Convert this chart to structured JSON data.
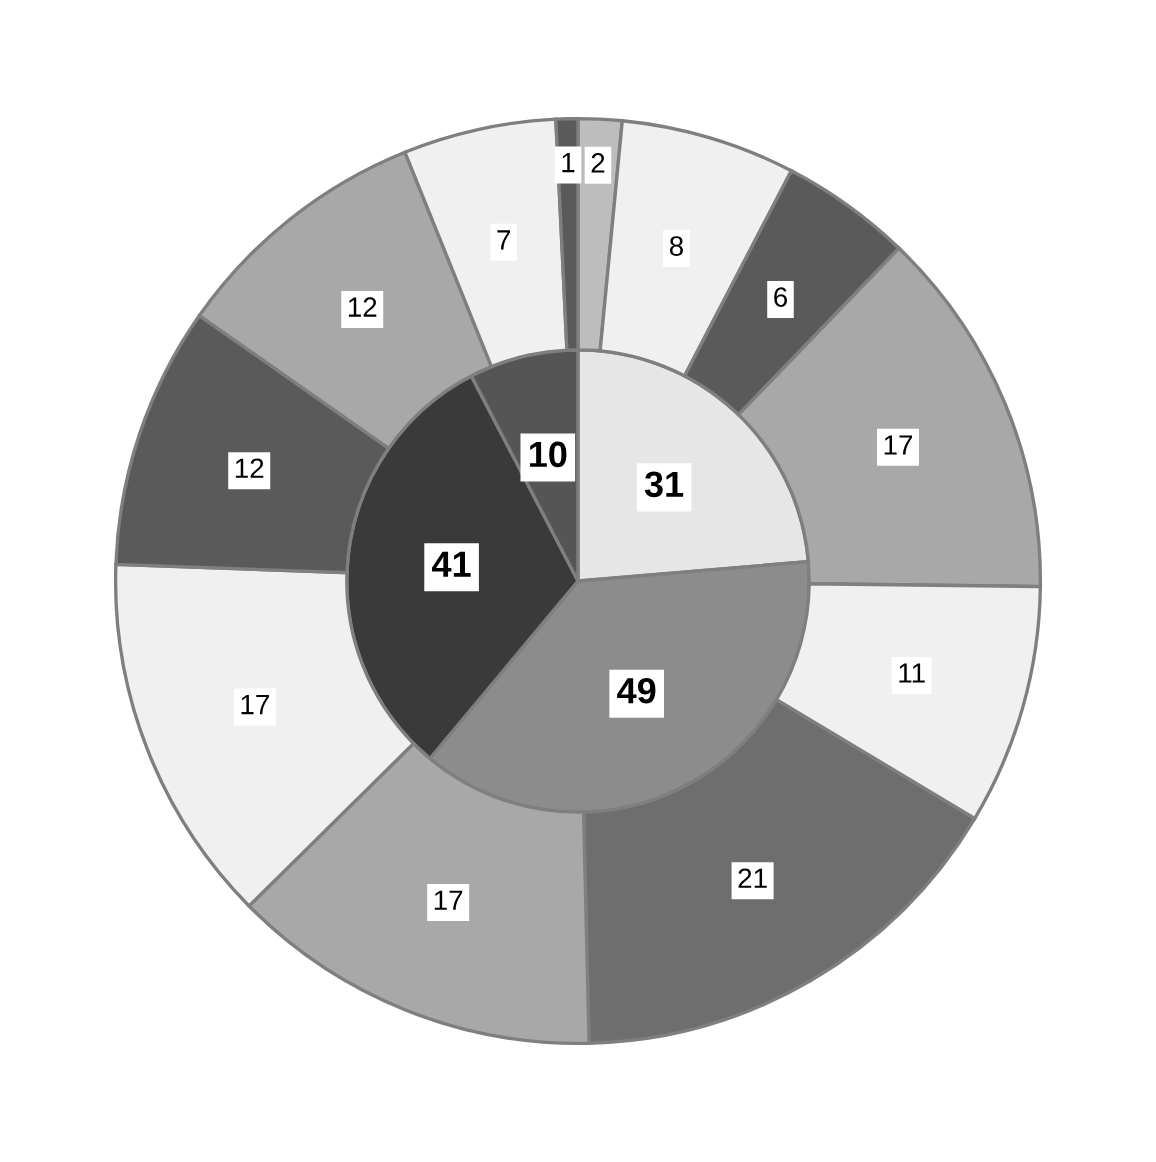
{
  "chart_data": {
    "type": "donut",
    "data_labels": true,
    "series": [
      {
        "type": "pie",
        "values": [
          31,
          49,
          41,
          10
        ],
        "colors": [
          "#e6e6e6",
          "#8c8c8c",
          "#3a3a3a",
          "#555555"
        ]
      },
      {
        "values": [
          2,
          8,
          6,
          17,
          11,
          21,
          17,
          17,
          12,
          12,
          7,
          1
        ],
        "colors": [
          "#bdbdbd",
          "#f0f0f0",
          "#5a5a5a",
          "#a8a8a8",
          "#f0f0f0",
          "#6e6e6e",
          "#a8a8a8",
          "#f0f0f0",
          "#5a5a5a",
          "#a8a8a8",
          "#f0f0f0",
          "#5a5a5a"
        ]
      }
    ]
  }
}
